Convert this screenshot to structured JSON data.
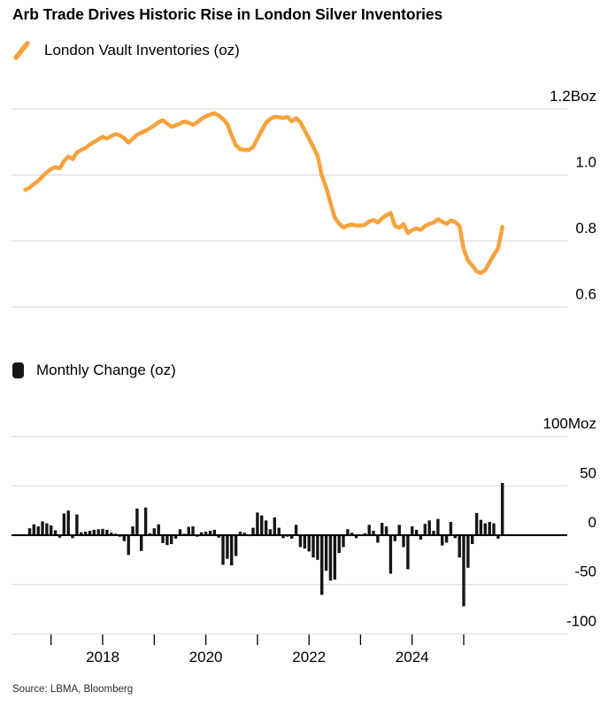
{
  "title": "Arb Trade Drives Historic Rise in London Silver Inventories",
  "source": "Source: LBMA, Bloomberg",
  "colors": {
    "line_orange": "#F7A23B",
    "bar_black": "#161616",
    "gridline_gray": "#D9D9D9",
    "axis_black": "#000000",
    "text_black": "#000000"
  },
  "chart_data": [
    {
      "type": "line",
      "title": "London Vault Inventories (oz)",
      "unit": "Boz",
      "frequency": "monthly",
      "x_start": "2016-07",
      "x_end": "2025-10",
      "y_axis": {
        "labels": [
          "1.2Boz",
          "1.0",
          "0.8",
          "0.6"
        ],
        "values": [
          1.2,
          1.0,
          0.8,
          0.6
        ],
        "position": "right",
        "grid": true
      },
      "values": [
        0.955,
        0.962,
        0.973,
        0.982,
        0.996,
        1.008,
        1.018,
        1.024,
        1.02,
        1.042,
        1.056,
        1.048,
        1.068,
        1.076,
        1.082,
        1.092,
        1.1,
        1.108,
        1.116,
        1.11,
        1.118,
        1.124,
        1.12,
        1.112,
        1.098,
        1.11,
        1.122,
        1.128,
        1.134,
        1.142,
        1.15,
        1.16,
        1.166,
        1.156,
        1.146,
        1.15,
        1.156,
        1.162,
        1.158,
        1.152,
        1.16,
        1.17,
        1.178,
        1.183,
        1.187,
        1.18,
        1.17,
        1.155,
        1.12,
        1.09,
        1.078,
        1.076,
        1.076,
        1.085,
        1.11,
        1.135,
        1.158,
        1.17,
        1.176,
        1.175,
        1.173,
        1.176,
        1.163,
        1.172,
        1.16,
        1.135,
        1.11,
        1.085,
        1.058,
        0.998,
        0.962,
        0.916,
        0.871,
        0.853,
        0.841,
        0.847,
        0.85,
        0.847,
        0.847,
        0.849,
        0.859,
        0.864,
        0.856,
        0.869,
        0.878,
        0.885,
        0.846,
        0.84,
        0.851,
        0.824,
        0.833,
        0.838,
        0.834,
        0.845,
        0.852,
        0.856,
        0.866,
        0.858,
        0.852,
        0.862,
        0.858,
        0.846,
        0.775,
        0.74,
        0.726,
        0.708,
        0.703,
        0.712,
        0.735,
        0.758,
        0.778,
        0.843
      ]
    },
    {
      "type": "bar",
      "title": "Monthly Change (oz)",
      "unit": "Moz",
      "frequency": "monthly",
      "x_start": "2016-08",
      "x_end": "2025-10",
      "y_axis": {
        "labels": [
          "100Moz",
          "50",
          "0",
          "-50",
          "-100"
        ],
        "values": [
          100,
          50,
          0,
          -50,
          -100
        ],
        "position": "right",
        "grid": true
      },
      "x_axis": {
        "tick_years": [
          2017,
          2018,
          2019,
          2020,
          2021,
          2022,
          2023,
          2024,
          2025
        ],
        "labeled_years": [
          2018,
          2020,
          2022,
          2024
        ]
      },
      "values": [
        7,
        11,
        9,
        14,
        12,
        10,
        5,
        -2.5,
        22,
        25,
        -3,
        21,
        3,
        3.5,
        4.5,
        5.5,
        6,
        6.5,
        5.5,
        2.5,
        1.5,
        -1.5,
        -6,
        -20,
        9,
        27,
        -16,
        28,
        2,
        7,
        11,
        -8,
        -10,
        -9,
        -3.5,
        6,
        1.5,
        8.5,
        9,
        -1.5,
        3,
        3.5,
        4.5,
        5.5,
        -2.5,
        -30,
        -24,
        -30.5,
        -21,
        3.5,
        2.5,
        -1,
        7.5,
        23,
        20,
        15,
        6,
        18,
        7.5,
        -3,
        -1.5,
        -3.5,
        10.5,
        -12,
        -13.5,
        -16.5,
        -22.5,
        -25,
        -60.5,
        -36,
        -46,
        -45,
        -18,
        -12,
        6,
        2.5,
        -3,
        0,
        2,
        10.5,
        4.5,
        -7.5,
        12.5,
        9,
        -39,
        -6,
        10.5,
        -12,
        -34.5,
        9,
        5.5,
        -4.5,
        11.5,
        15,
        4.5,
        16.5,
        -10.5,
        -7.5,
        13.5,
        -3,
        -22.5,
        -72,
        -33,
        -9,
        22.5,
        15.5,
        12,
        13.5,
        12,
        -3.5,
        53
      ]
    }
  ]
}
